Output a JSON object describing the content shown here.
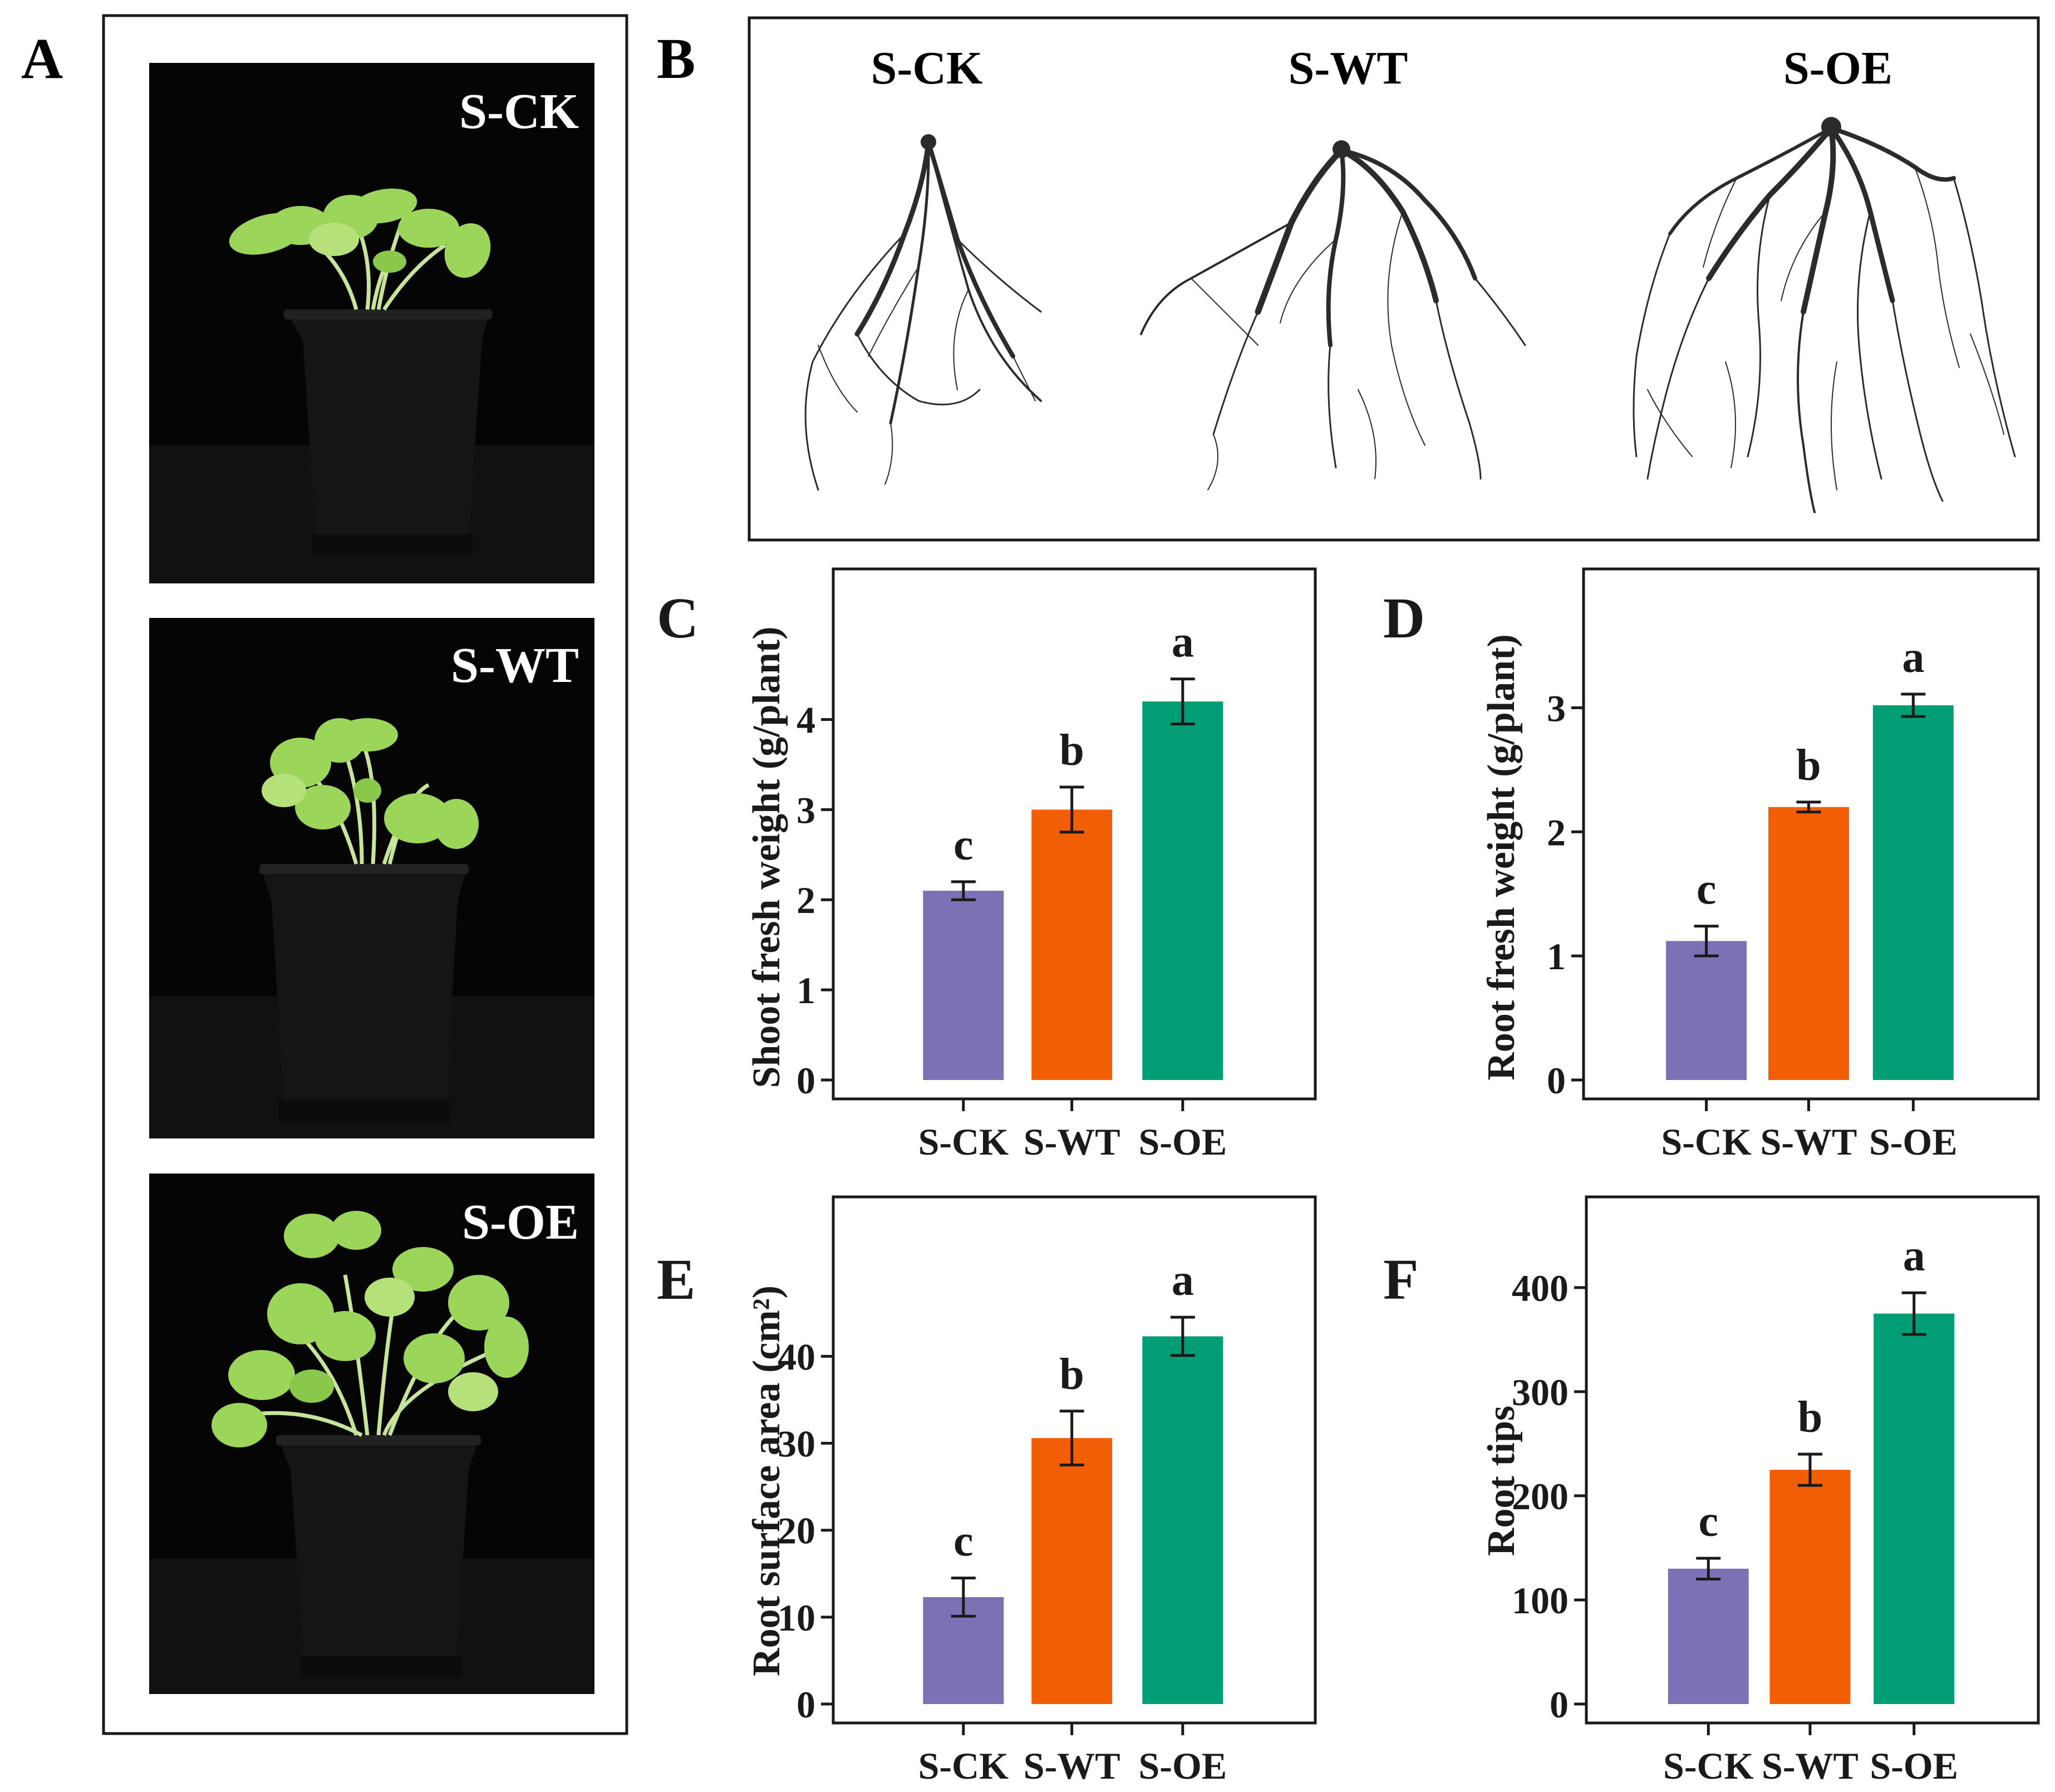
{
  "panels": {
    "A": {
      "letter": "A",
      "photos": [
        {
          "label": "S-CK"
        },
        {
          "label": "S-WT"
        },
        {
          "label": "S-OE"
        }
      ]
    },
    "B": {
      "letter": "B",
      "roots": [
        {
          "label": "S-CK"
        },
        {
          "label": "S-WT"
        },
        {
          "label": "S-OE"
        }
      ]
    }
  },
  "colors": {
    "S-CK": "#7B72B6",
    "S-WT": "#F25E05",
    "S-OE": "#019E75",
    "axis": "#1a1a1a",
    "photo_bg": "#050505",
    "pot": "#151515",
    "leaf": "#9BD55A",
    "root": "#2b2b2b"
  },
  "chart_data": [
    {
      "panel": "C",
      "type": "bar",
      "ylabel": "Shoot fresh weight (g/plant)",
      "categories": [
        "S-CK",
        "S-WT",
        "S-OE"
      ],
      "values": [
        2.1,
        3.0,
        4.2
      ],
      "errors": [
        0.1,
        0.25,
        0.25
      ],
      "letters": [
        "c",
        "b",
        "a"
      ],
      "yticks": [
        0,
        1,
        2,
        3,
        4
      ],
      "ylim": [
        0,
        5.3
      ]
    },
    {
      "panel": "D",
      "type": "bar",
      "ylabel": "Root fresh weight (g/plant)",
      "categories": [
        "S-CK",
        "S-WT",
        "S-OE"
      ],
      "values": [
        1.12,
        2.2,
        3.02
      ],
      "errors": [
        0.12,
        0.04,
        0.09
      ],
      "letters": [
        "c",
        "b",
        "a"
      ],
      "yticks": [
        0,
        1,
        2,
        3
      ],
      "ylim": [
        0,
        3.85
      ]
    },
    {
      "panel": "E",
      "type": "bar",
      "ylabel": "Root surface area (cm²)",
      "categories": [
        "S-CK",
        "S-WT",
        "S-OE"
      ],
      "values": [
        12.3,
        30.6,
        42.3
      ],
      "errors": [
        2.2,
        3.1,
        2.2
      ],
      "letters": [
        "c",
        "b",
        "a"
      ],
      "yticks": [
        0,
        10,
        20,
        30,
        40
      ],
      "ylim": [
        0,
        54.5
      ]
    },
    {
      "panel": "F",
      "type": "bar",
      "ylabel": "Root tips",
      "categories": [
        "S-CK",
        "S-WT",
        "S-OE"
      ],
      "values": [
        130,
        225,
        375
      ],
      "errors": [
        10,
        15,
        20
      ],
      "letters": [
        "c",
        "b",
        "a"
      ],
      "yticks": [
        0,
        100,
        200,
        300,
        400
      ],
      "ylim": [
        0,
        455
      ]
    }
  ]
}
